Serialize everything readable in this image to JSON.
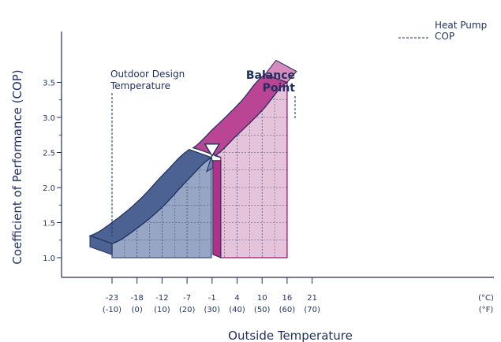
{
  "chart_data": {
    "type": "area",
    "xlabel": "Outside Temperature",
    "ylabel": "Coefficient of Performance (COP)",
    "ylim": [
      0.7,
      3.6
    ],
    "y_ticks": [
      "1.0",
      "1.5",
      "2.0",
      "2.5",
      "3.0",
      "3.5"
    ],
    "x_ticks": [
      {
        "c": "-23",
        "f": "(-10)"
      },
      {
        "c": "-18",
        "f": "(0)"
      },
      {
        "c": "-12",
        "f": "(10)"
      },
      {
        "c": "-7",
        "f": "(20)"
      },
      {
        "c": "-1",
        "f": "(30)"
      },
      {
        "c": "4",
        "f": "(40)"
      },
      {
        "c": "10",
        "f": "(50)"
      },
      {
        "c": "16",
        "f": "(60)"
      },
      {
        "c": "21",
        "f": "(70)"
      }
    ],
    "units": {
      "c": "(°C)",
      "f": "(°F)"
    },
    "series": [
      {
        "x_f": [
          -10,
          0,
          10,
          20,
          30
        ],
        "cop": [
          1.2,
          1.42,
          1.72,
          2.1,
          2.43
        ]
      },
      {
        "x_f": [
          30,
          40,
          50,
          60
        ],
        "cop": [
          2.43,
          2.75,
          3.1,
          3.5
        ]
      }
    ],
    "annotations": {
      "design_temp": [
        "Outdoor Design",
        "Temperature"
      ],
      "balance_point": [
        "Balance",
        "Point"
      ],
      "heat_pump": [
        "Heat Pump",
        "COP"
      ]
    }
  },
  "colors": {
    "blue_face": "#4b6292",
    "blue_top": "#6b83b2",
    "blue_fill": "#97a6c4",
    "pink_face": "#bb4595",
    "pink_top": "#d78bbd",
    "pink_fill": "#e5c3db",
    "magenta": "#b03288",
    "axis": "#1f2f5e"
  }
}
